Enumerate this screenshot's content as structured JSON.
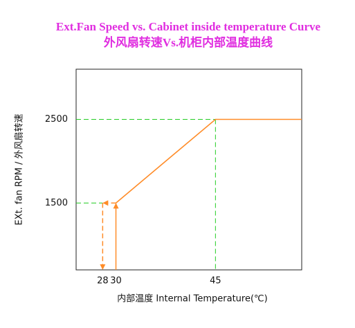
{
  "chart_data": {
    "type": "line",
    "title": "Ext.Fan Speed vs. Cabinet inside temperature Curve",
    "subtitle": "外风扇转速Vs.机柜内部温度曲线",
    "x_label": "内部温度 Internal Temperature(℃)",
    "y_label": "EXt. fan RPM / 外风扇转速",
    "x": [
      30,
      45,
      58
    ],
    "series": [
      {
        "color": "#ff8c28",
        "values": [
          1500,
          2500,
          2500
        ]
      }
    ],
    "start_x": 28,
    "guide_color": "#22cc22",
    "xlim": [
      24,
      58
    ],
    "xticks": [
      28,
      30,
      45
    ],
    "ylim": [
      700,
      3100
    ],
    "yticks": [
      1500,
      2500
    ]
  }
}
